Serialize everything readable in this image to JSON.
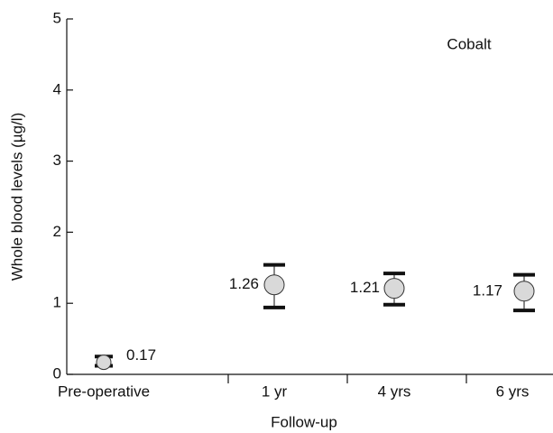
{
  "chart_data": {
    "type": "errorpoint",
    "annotation": "Cobalt",
    "x_label": "Follow-up",
    "y_label": "Whole blood levels (µg/l)",
    "categories": [
      "Pre-operative",
      "1 yr",
      "4 yrs",
      "6 yrs"
    ],
    "values": [
      0.17,
      1.26,
      1.21,
      1.17
    ],
    "lower": [
      0.12,
      0.94,
      0.98,
      0.9
    ],
    "upper": [
      0.25,
      1.54,
      1.42,
      1.4
    ],
    "color": "#d9d9d9",
    "ylim": [
      0,
      5
    ],
    "yticks": [
      0,
      1,
      2,
      3,
      4,
      5
    ]
  }
}
